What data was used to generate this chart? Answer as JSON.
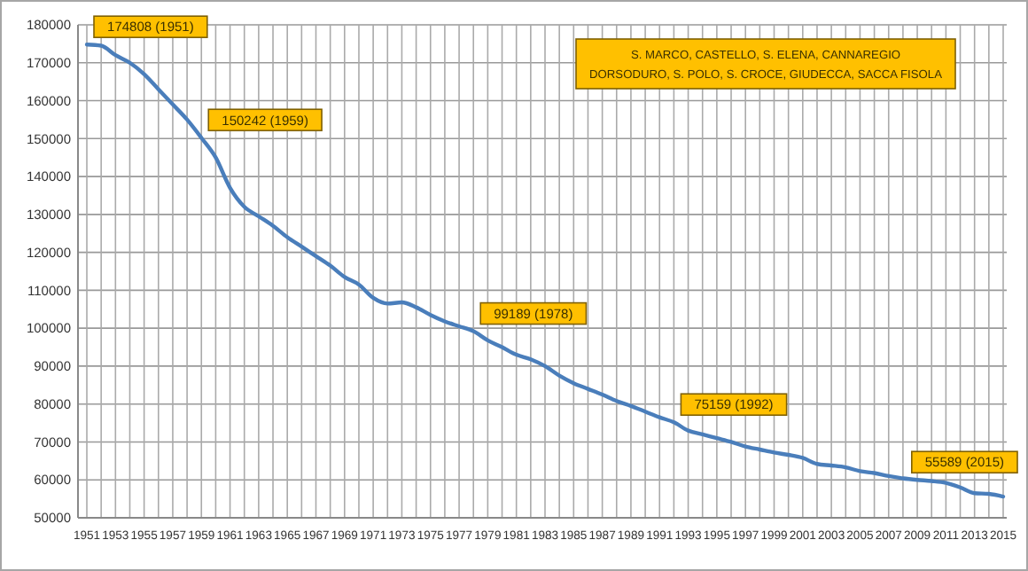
{
  "chart_data": {
    "type": "line",
    "categories": [
      "1951",
      null,
      "1953",
      null,
      "1955",
      null,
      "1957",
      null,
      "1959",
      null,
      "1961",
      null,
      "1963",
      null,
      "1965",
      null,
      "1967",
      null,
      "1969",
      null,
      "1971",
      null,
      "1973",
      null,
      "1975",
      null,
      "1977",
      null,
      "1979",
      null,
      "1981",
      null,
      "1983",
      null,
      "1985",
      null,
      "1987",
      null,
      "1989",
      null,
      "1991",
      null,
      "1993",
      null,
      "1995",
      null,
      "1997",
      null,
      "1999",
      null,
      "2001",
      null,
      "2003",
      null,
      "2005",
      null,
      "2007",
      null,
      "2009",
      null,
      "2011",
      null,
      "2013",
      null,
      "2015"
    ],
    "series": [
      {
        "color": "#4a7ebb",
        "values": [
          174800,
          174500,
          172000,
          170000,
          167000,
          163000,
          159000,
          155000,
          150200,
          145000,
          137000,
          132000,
          129500,
          127000,
          124000,
          121500,
          119000,
          116500,
          113500,
          111500,
          108000,
          106500,
          106800,
          105500,
          103500,
          101800,
          100500,
          99200,
          96800,
          95000,
          93000,
          91800,
          90000,
          87500,
          85500,
          84000,
          82500,
          80800,
          79500,
          78000,
          76500,
          75200,
          73000,
          72000,
          71000,
          70000,
          68800,
          68000,
          67200,
          66600,
          65800,
          64200,
          63800,
          63300,
          62300,
          61800,
          61000,
          60400,
          60000,
          59700,
          59200,
          58000,
          56500,
          56300,
          55600
        ]
      }
    ],
    "ylim": [
      50000,
      180000
    ],
    "yticks": [
      50000,
      60000,
      70000,
      80000,
      90000,
      100000,
      110000,
      120000,
      130000,
      140000,
      150000,
      160000,
      170000,
      180000
    ],
    "grid": true,
    "annotations": [
      {
        "text": "174808 (1951)",
        "x": "1951",
        "y": 174808
      },
      {
        "text": "150242 (1959)",
        "x": "1959",
        "y": 150242
      },
      "99189 (1978)",
      "75159 (1992)",
      {
        "text": "55589 (2015)",
        "x": "2015",
        "y": 55589
      },
      "S. MARCO, CASTELLO, S. ELENA, CANNAREGIO",
      "DORSODURO, S. POLO, S. CROCE, GIUDECCA, SACCA FISOLA"
    ]
  }
}
